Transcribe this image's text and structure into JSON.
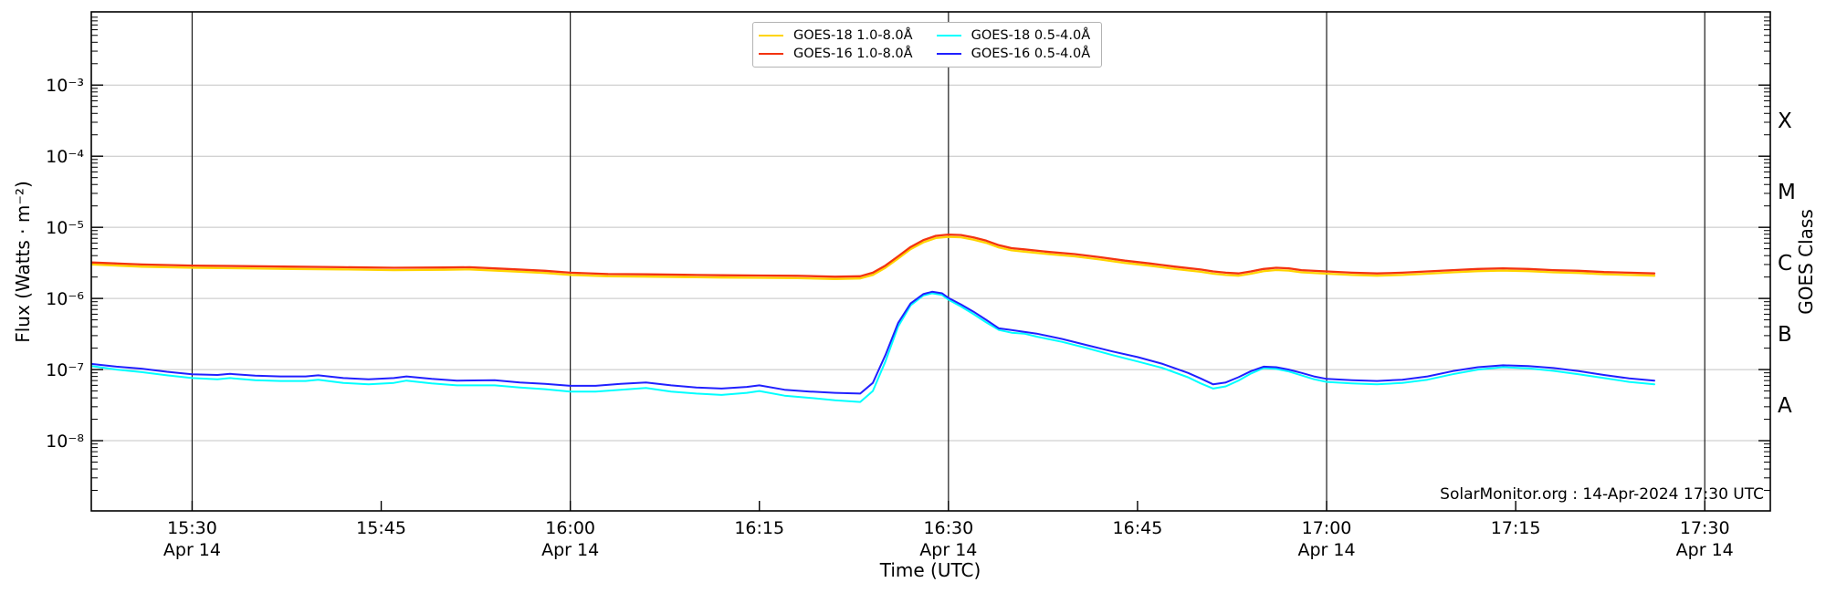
{
  "chart_data": {
    "type": "line",
    "title": "",
    "xlabel": "Time (UTC)",
    "ylabel_left": "Flux (Watts · m⁻²)",
    "ylabel_right": "GOES Class",
    "annotation": "SolarMonitor.org : 14-Apr-2024 17:30 UTC",
    "x_unit": "minutes after 15:00 UTC on 14-Apr-2024",
    "x_range": [
      22,
      155.2
    ],
    "y_range": [
      1.03e-09,
      0.0107
    ],
    "grid": {
      "horizontal_color": "#c4c4c4",
      "vertical_color": "#1a1a1a"
    },
    "x_ticks": [
      {
        "t": 30,
        "label": "15:30",
        "sublabel": "Apr 14",
        "grid": true
      },
      {
        "t": 45,
        "label": "15:45",
        "grid": false
      },
      {
        "t": 60,
        "label": "16:00",
        "sublabel": "Apr 14",
        "grid": true
      },
      {
        "t": 75,
        "label": "16:15",
        "grid": false
      },
      {
        "t": 90,
        "label": "16:30",
        "sublabel": "Apr 14",
        "grid": true
      },
      {
        "t": 105,
        "label": "16:45",
        "grid": false
      },
      {
        "t": 120,
        "label": "17:00",
        "sublabel": "Apr 14",
        "grid": true
      },
      {
        "t": 135,
        "label": "17:15",
        "grid": false
      },
      {
        "t": 150,
        "label": "17:30",
        "sublabel": "Apr 14",
        "grid": true
      }
    ],
    "y_ticks": [
      {
        "exp": -3,
        "label": "10⁻³"
      },
      {
        "exp": -4,
        "label": "10⁻⁴"
      },
      {
        "exp": -5,
        "label": "10⁻⁵"
      },
      {
        "exp": -6,
        "label": "10⁻⁶"
      },
      {
        "exp": -7,
        "label": "10⁻⁷"
      },
      {
        "exp": -8,
        "label": "10⁻⁸"
      }
    ],
    "goes_class_labels": [
      {
        "label": "X",
        "log_center": -3.5
      },
      {
        "label": "M",
        "log_center": -4.5
      },
      {
        "label": "C",
        "log_center": -5.5
      },
      {
        "label": "B",
        "log_center": -6.5
      },
      {
        "label": "A",
        "log_center": -7.5
      }
    ],
    "series": [
      {
        "name": "GOES-18 1.0-8.0Å",
        "color": "#ffd400",
        "width": 2.3,
        "points": [
          [
            22,
            3e-06
          ],
          [
            26,
            2.8e-06
          ],
          [
            30,
            2.7e-06
          ],
          [
            34,
            2.65e-06
          ],
          [
            38,
            2.6e-06
          ],
          [
            42,
            2.56e-06
          ],
          [
            46,
            2.5e-06
          ],
          [
            50,
            2.53e-06
          ],
          [
            52,
            2.56e-06
          ],
          [
            55,
            2.42e-06
          ],
          [
            58,
            2.28e-06
          ],
          [
            60,
            2.14e-06
          ],
          [
            63,
            2.05e-06
          ],
          [
            66,
            2.03e-06
          ],
          [
            69,
            2e-06
          ],
          [
            72,
            1.97e-06
          ],
          [
            75,
            1.95e-06
          ],
          [
            78,
            1.93e-06
          ],
          [
            81,
            1.88e-06
          ],
          [
            83,
            1.91e-06
          ],
          [
            84,
            2.14e-06
          ],
          [
            85,
            2.7e-06
          ],
          [
            86,
            3.63e-06
          ],
          [
            87,
            4.93e-06
          ],
          [
            88,
            6.14e-06
          ],
          [
            89,
            7.07e-06
          ],
          [
            90,
            7.35e-06
          ],
          [
            91,
            7.25e-06
          ],
          [
            92,
            6.7e-06
          ],
          [
            93,
            6.05e-06
          ],
          [
            94,
            5.2e-06
          ],
          [
            95,
            4.74e-06
          ],
          [
            96,
            4.56e-06
          ],
          [
            98,
            4.19e-06
          ],
          [
            100,
            3.9e-06
          ],
          [
            102,
            3.53e-06
          ],
          [
            104,
            3.16e-06
          ],
          [
            106,
            2.88e-06
          ],
          [
            108,
            2.6e-06
          ],
          [
            110,
            2.37e-06
          ],
          [
            111,
            2.23e-06
          ],
          [
            112,
            2.14e-06
          ],
          [
            113,
            2.09e-06
          ],
          [
            114,
            2.23e-06
          ],
          [
            115,
            2.42e-06
          ],
          [
            116,
            2.51e-06
          ],
          [
            117,
            2.46e-06
          ],
          [
            118,
            2.33e-06
          ],
          [
            120,
            2.23e-06
          ],
          [
            122,
            2.14e-06
          ],
          [
            124,
            2.09e-06
          ],
          [
            126,
            2.14e-06
          ],
          [
            128,
            2.23e-06
          ],
          [
            130,
            2.33e-06
          ],
          [
            132,
            2.42e-06
          ],
          [
            134,
            2.46e-06
          ],
          [
            136,
            2.42e-06
          ],
          [
            138,
            2.33e-06
          ],
          [
            140,
            2.28e-06
          ],
          [
            142,
            2.19e-06
          ],
          [
            144,
            2.14e-06
          ],
          [
            146,
            2.09e-06
          ]
        ]
      },
      {
        "name": "GOES-16 1.0-8.0Å",
        "color": "#f3330f",
        "width": 2.3,
        "points": [
          [
            22,
            3.2e-06
          ],
          [
            26,
            3e-06
          ],
          [
            30,
            2.9e-06
          ],
          [
            34,
            2.85e-06
          ],
          [
            38,
            2.8e-06
          ],
          [
            42,
            2.75e-06
          ],
          [
            46,
            2.7e-06
          ],
          [
            50,
            2.72e-06
          ],
          [
            52,
            2.75e-06
          ],
          [
            55,
            2.6e-06
          ],
          [
            58,
            2.45e-06
          ],
          [
            60,
            2.3e-06
          ],
          [
            63,
            2.2e-06
          ],
          [
            66,
            2.18e-06
          ],
          [
            69,
            2.15e-06
          ],
          [
            72,
            2.12e-06
          ],
          [
            75,
            2.1e-06
          ],
          [
            78,
            2.08e-06
          ],
          [
            81,
            2.02e-06
          ],
          [
            83,
            2.05e-06
          ],
          [
            84,
            2.3e-06
          ],
          [
            85,
            2.9e-06
          ],
          [
            86,
            3.9e-06
          ],
          [
            87,
            5.3e-06
          ],
          [
            88,
            6.6e-06
          ],
          [
            89,
            7.6e-06
          ],
          [
            90,
            7.9e-06
          ],
          [
            91,
            7.8e-06
          ],
          [
            92,
            7.2e-06
          ],
          [
            93,
            6.5e-06
          ],
          [
            94,
            5.6e-06
          ],
          [
            95,
            5.1e-06
          ],
          [
            96,
            4.9e-06
          ],
          [
            98,
            4.5e-06
          ],
          [
            100,
            4.2e-06
          ],
          [
            102,
            3.8e-06
          ],
          [
            104,
            3.4e-06
          ],
          [
            106,
            3.1e-06
          ],
          [
            108,
            2.8e-06
          ],
          [
            110,
            2.55e-06
          ],
          [
            111,
            2.4e-06
          ],
          [
            112,
            2.3e-06
          ],
          [
            113,
            2.25e-06
          ],
          [
            114,
            2.4e-06
          ],
          [
            115,
            2.6e-06
          ],
          [
            116,
            2.7e-06
          ],
          [
            117,
            2.65e-06
          ],
          [
            118,
            2.5e-06
          ],
          [
            120,
            2.4e-06
          ],
          [
            122,
            2.3e-06
          ],
          [
            124,
            2.25e-06
          ],
          [
            126,
            2.3e-06
          ],
          [
            128,
            2.4e-06
          ],
          [
            130,
            2.5e-06
          ],
          [
            132,
            2.6e-06
          ],
          [
            134,
            2.65e-06
          ],
          [
            136,
            2.6e-06
          ],
          [
            138,
            2.5e-06
          ],
          [
            140,
            2.45e-06
          ],
          [
            142,
            2.35e-06
          ],
          [
            144,
            2.3e-06
          ],
          [
            146,
            2.25e-06
          ]
        ]
      },
      {
        "name": "GOES-18 0.5-4.0Å",
        "color": "#00ffff",
        "width": 2.0,
        "points": [
          [
            22,
            1.12e-07
          ],
          [
            24,
            1e-07
          ],
          [
            26,
            9.2e-08
          ],
          [
            28,
            8.3e-08
          ],
          [
            30,
            7.6e-08
          ],
          [
            32,
            7.3e-08
          ],
          [
            33,
            7.6e-08
          ],
          [
            35,
            7.1e-08
          ],
          [
            37,
            6.9e-08
          ],
          [
            39,
            6.9e-08
          ],
          [
            40,
            7.2e-08
          ],
          [
            42,
            6.5e-08
          ],
          [
            44,
            6.2e-08
          ],
          [
            46,
            6.5e-08
          ],
          [
            47,
            7e-08
          ],
          [
            49,
            6.4e-08
          ],
          [
            51,
            6e-08
          ],
          [
            54,
            6e-08
          ],
          [
            56,
            5.6e-08
          ],
          [
            58,
            5.3e-08
          ],
          [
            60,
            4.9e-08
          ],
          [
            62,
            4.9e-08
          ],
          [
            64,
            5.2e-08
          ],
          [
            66,
            5.5e-08
          ],
          [
            68,
            4.9e-08
          ],
          [
            70,
            4.6e-08
          ],
          [
            72,
            4.4e-08
          ],
          [
            74,
            4.7e-08
          ],
          [
            75,
            5e-08
          ],
          [
            77,
            4.3e-08
          ],
          [
            79,
            4e-08
          ],
          [
            81,
            3.7e-08
          ],
          [
            83,
            3.5e-08
          ],
          [
            84,
            5e-08
          ],
          [
            85,
            1.3e-07
          ],
          [
            86,
            4e-07
          ],
          [
            87,
            8e-07
          ],
          [
            88,
            1.1e-06
          ],
          [
            88.7,
            1.18e-06
          ],
          [
            89.5,
            1.12e-06
          ],
          [
            90,
            9.6e-07
          ],
          [
            91,
            7.7e-07
          ],
          [
            92,
            6e-07
          ],
          [
            93,
            4.6e-07
          ],
          [
            94,
            3.6e-07
          ],
          [
            95,
            3.3e-07
          ],
          [
            96,
            3.2e-07
          ],
          [
            97,
            2.9e-07
          ],
          [
            99,
            2.45e-07
          ],
          [
            101,
            2e-07
          ],
          [
            103,
            1.6e-07
          ],
          [
            105,
            1.3e-07
          ],
          [
            107,
            1.05e-07
          ],
          [
            109,
            7.8e-08
          ],
          [
            110,
            6.4e-08
          ],
          [
            111,
            5.4e-08
          ],
          [
            112,
            5.8e-08
          ],
          [
            113,
            7e-08
          ],
          [
            114,
            8.8e-08
          ],
          [
            115,
            1.05e-07
          ],
          [
            116,
            1.02e-07
          ],
          [
            117,
            9.4e-08
          ],
          [
            118,
            8.3e-08
          ],
          [
            119,
            7.3e-08
          ],
          [
            120,
            6.7e-08
          ],
          [
            122,
            6.4e-08
          ],
          [
            124,
            6.2e-08
          ],
          [
            126,
            6.5e-08
          ],
          [
            128,
            7.2e-08
          ],
          [
            130,
            8.6e-08
          ],
          [
            132,
            1e-07
          ],
          [
            134,
            1.08e-07
          ],
          [
            136,
            1.04e-07
          ],
          [
            138,
            9.6e-08
          ],
          [
            140,
            8.6e-08
          ],
          [
            142,
            7.6e-08
          ],
          [
            144,
            6.7e-08
          ],
          [
            146,
            6.2e-08
          ]
        ]
      },
      {
        "name": "GOES-16 0.5-4.0Å",
        "color": "#2020ff",
        "width": 2.0,
        "points": [
          [
            22,
            1.2e-07
          ],
          [
            24,
            1.1e-07
          ],
          [
            26,
            1.03e-07
          ],
          [
            28,
            9.3e-08
          ],
          [
            30,
            8.6e-08
          ],
          [
            32,
            8.4e-08
          ],
          [
            33,
            8.7e-08
          ],
          [
            35,
            8.2e-08
          ],
          [
            37,
            8e-08
          ],
          [
            39,
            8e-08
          ],
          [
            40,
            8.3e-08
          ],
          [
            42,
            7.6e-08
          ],
          [
            44,
            7.3e-08
          ],
          [
            46,
            7.6e-08
          ],
          [
            47,
            8e-08
          ],
          [
            49,
            7.4e-08
          ],
          [
            51,
            7e-08
          ],
          [
            54,
            7.1e-08
          ],
          [
            56,
            6.6e-08
          ],
          [
            58,
            6.3e-08
          ],
          [
            60,
            5.9e-08
          ],
          [
            62,
            5.9e-08
          ],
          [
            64,
            6.3e-08
          ],
          [
            66,
            6.6e-08
          ],
          [
            68,
            6e-08
          ],
          [
            70,
            5.6e-08
          ],
          [
            72,
            5.4e-08
          ],
          [
            74,
            5.7e-08
          ],
          [
            75,
            6e-08
          ],
          [
            77,
            5.2e-08
          ],
          [
            79,
            4.9e-08
          ],
          [
            81,
            4.7e-08
          ],
          [
            83,
            4.6e-08
          ],
          [
            84,
            6.5e-08
          ],
          [
            85,
            1.6e-07
          ],
          [
            86,
            4.5e-07
          ],
          [
            87,
            8.5e-07
          ],
          [
            88,
            1.15e-06
          ],
          [
            88.7,
            1.24e-06
          ],
          [
            89.5,
            1.18e-06
          ],
          [
            90,
            1.02e-06
          ],
          [
            91,
            8.2e-07
          ],
          [
            92,
            6.5e-07
          ],
          [
            93,
            5e-07
          ],
          [
            94,
            3.8e-07
          ],
          [
            95,
            3.6e-07
          ],
          [
            96,
            3.4e-07
          ],
          [
            97,
            3.2e-07
          ],
          [
            99,
            2.7e-07
          ],
          [
            101,
            2.2e-07
          ],
          [
            103,
            1.8e-07
          ],
          [
            105,
            1.5e-07
          ],
          [
            107,
            1.2e-07
          ],
          [
            109,
            9e-08
          ],
          [
            110,
            7.5e-08
          ],
          [
            111,
            6.2e-08
          ],
          [
            112,
            6.6e-08
          ],
          [
            113,
            7.8e-08
          ],
          [
            114,
            9.5e-08
          ],
          [
            115,
            1.1e-07
          ],
          [
            116,
            1.08e-07
          ],
          [
            117,
            1e-07
          ],
          [
            118,
            9e-08
          ],
          [
            119,
            8e-08
          ],
          [
            120,
            7.4e-08
          ],
          [
            122,
            7.1e-08
          ],
          [
            124,
            6.9e-08
          ],
          [
            126,
            7.2e-08
          ],
          [
            128,
            8e-08
          ],
          [
            130,
            9.5e-08
          ],
          [
            132,
            1.08e-07
          ],
          [
            134,
            1.15e-07
          ],
          [
            136,
            1.12e-07
          ],
          [
            138,
            1.05e-07
          ],
          [
            140,
            9.5e-08
          ],
          [
            142,
            8.4e-08
          ],
          [
            144,
            7.5e-08
          ],
          [
            146,
            7e-08
          ]
        ]
      }
    ],
    "legend_position": "top-center"
  }
}
